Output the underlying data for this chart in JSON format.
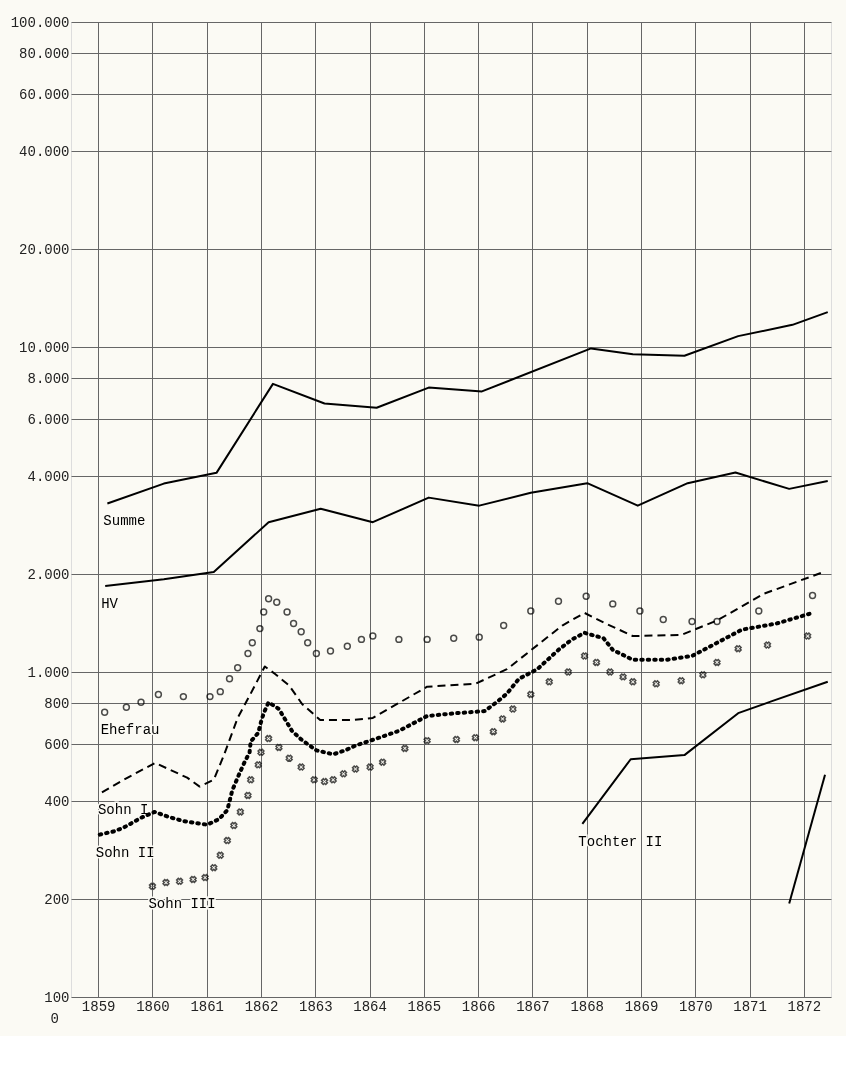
{
  "chart_data": {
    "type": "line",
    "xlim": [
      1859,
      1873
    ],
    "xticks": [
      {
        "value": 1859.5,
        "label": "1859"
      },
      {
        "value": 1860.5,
        "label": "1860"
      },
      {
        "value": 1861.5,
        "label": "1861"
      },
      {
        "value": 1862.5,
        "label": "1862"
      },
      {
        "value": 1863.5,
        "label": "1863"
      },
      {
        "value": 1864.5,
        "label": "1864"
      },
      {
        "value": 1865.5,
        "label": "1865"
      },
      {
        "value": 1866.5,
        "label": "1866"
      },
      {
        "value": 1867.5,
        "label": "1867"
      },
      {
        "value": 1868.5,
        "label": "1868"
      },
      {
        "value": 1869.5,
        "label": "1869"
      },
      {
        "value": 1870.5,
        "label": "1870"
      },
      {
        "value": 1871.5,
        "label": "1871"
      },
      {
        "value": 1872.5,
        "label": "1872"
      }
    ],
    "ylim": [
      100,
      100000
    ],
    "log": true,
    "yticks": [
      100,
      200,
      400,
      600,
      800,
      {
        "value": 1000,
        "label": "1.000"
      },
      {
        "value": 2000,
        "label": "2.000"
      },
      {
        "value": 4000,
        "label": "4.000"
      },
      {
        "value": 6000,
        "label": "6.000"
      },
      {
        "value": 8000,
        "label": "8.000"
      },
      {
        "value": 10000,
        "label": "10.000"
      },
      {
        "value": 20000,
        "label": "20.000"
      },
      {
        "value": 40000,
        "label": "40.000"
      },
      {
        "value": 60000,
        "label": "60.000"
      },
      {
        "value": 80000,
        "label": "80.000"
      },
      {
        "value": 100000,
        "label": "100.000"
      }
    ],
    "grid": true,
    "legend": false,
    "annotations": [
      "0"
    ],
    "series": [
      {
        "name": "Summe",
        "line_style": "solid",
        "color": "#000000",
        "x": [
          1859.67,
          1860.71,
          1861.68,
          1862.72,
          1863.67,
          1864.63,
          1865.59,
          1866.57,
          1868.58,
          1869.35,
          1870.3,
          1871.29,
          1872.29,
          1872.94
        ],
        "values": [
          3300,
          3800,
          4100,
          7700,
          6700,
          6500,
          7500,
          7300,
          9900,
          9500,
          9400,
          10800,
          11700,
          12800
        ]
      },
      {
        "name": "HV",
        "line_style": "solid",
        "color": "#000000",
        "x": [
          1859.63,
          1860.71,
          1861.63,
          1862.64,
          1863.6,
          1864.56,
          1865.59,
          1866.52,
          1867.47,
          1868.51,
          1869.44,
          1870.36,
          1871.24,
          1872.23,
          1872.94
        ],
        "values": [
          1840,
          1930,
          2030,
          2890,
          3180,
          2890,
          3440,
          3250,
          3560,
          3810,
          3250,
          3810,
          4110,
          3660,
          3870
        ]
      },
      {
        "name": "Ehefrau",
        "type": "scatter",
        "marker": "circle",
        "color": "#000000",
        "x": [
          1859.62,
          1860.02,
          1860.29,
          1860.61,
          1861.07,
          1861.56,
          1861.75,
          1861.92,
          1862.07,
          1862.26,
          1862.34,
          1862.48,
          1862.55,
          1862.64,
          1862.79,
          1862.98,
          1863.1,
          1863.24,
          1863.36,
          1863.52,
          1863.78,
          1864.09,
          1864.35,
          1864.56,
          1865.04,
          1865.56,
          1866.05,
          1866.52,
          1866.97,
          1867.47,
          1867.98,
          1868.49,
          1868.98,
          1869.48,
          1869.91,
          1870.44,
          1870.9,
          1871.67,
          1872.66
        ],
        "values": [
          752,
          779,
          807,
          853,
          840,
          840,
          870,
          953,
          1030,
          1140,
          1230,
          1360,
          1530,
          1680,
          1640,
          1530,
          1410,
          1330,
          1230,
          1140,
          1160,
          1200,
          1260,
          1290,
          1260,
          1260,
          1270,
          1280,
          1390,
          1540,
          1650,
          1710,
          1620,
          1540,
          1450,
          1430,
          1430,
          1540,
          1720
        ]
      },
      {
        "name": "Sohn I",
        "line_style": "dashed",
        "color": "#000000",
        "x": [
          1859.57,
          1859.97,
          1860.55,
          1861.14,
          1861.37,
          1861.63,
          1861.81,
          1862.07,
          1862.31,
          1862.57,
          1862.76,
          1863.02,
          1863.26,
          1863.59,
          1864.21,
          1864.56,
          1865.56,
          1866.45,
          1867.03,
          1868.05,
          1868.46,
          1868.85,
          1869.35,
          1870.24,
          1870.9,
          1871.76,
          1872.86
        ],
        "values": [
          426,
          466,
          525,
          473,
          444,
          466,
          551,
          722,
          858,
          1040,
          986,
          908,
          796,
          712,
          712,
          722,
          901,
          920,
          1020,
          1390,
          1520,
          1410,
          1290,
          1300,
          1440,
          1740,
          2030
        ]
      },
      {
        "name": "Sohn II",
        "line_style": "dotted",
        "color": "#000000",
        "x": [
          1859.53,
          1859.78,
          1859.97,
          1860.29,
          1860.54,
          1860.8,
          1861.07,
          1861.25,
          1861.51,
          1861.73,
          1861.88,
          1861.97,
          1862.1,
          1862.19,
          1862.29,
          1862.31,
          1862.45,
          1862.5,
          1862.55,
          1862.64,
          1862.83,
          1862.95,
          1863.07,
          1863.24,
          1863.52,
          1863.83,
          1864.05,
          1864.24,
          1864.63,
          1865.04,
          1865.56,
          1866.1,
          1866.62,
          1866.86,
          1867.03,
          1867.25,
          1867.59,
          1867.98,
          1868.23,
          1868.46,
          1868.81,
          1868.98,
          1869.35,
          1869.96,
          1870.44,
          1870.9,
          1871.36,
          1872.0,
          1872.66
        ],
        "values": [
          316,
          323,
          332,
          356,
          371,
          358,
          348,
          344,
          339,
          353,
          376,
          432,
          486,
          525,
          566,
          611,
          650,
          702,
          747,
          807,
          769,
          712,
          659,
          620,
          574,
          558,
          574,
          594,
          624,
          659,
          732,
          747,
          758,
          812,
          858,
          953,
          1020,
          1170,
          1260,
          1320,
          1270,
          1170,
          1090,
          1090,
          1120,
          1230,
          1350,
          1410,
          1520
        ]
      },
      {
        "name": "Sohn III",
        "type": "scatter",
        "marker": "cross",
        "color": "#000000",
        "x": [
          1860.5,
          1860.75,
          1861.0,
          1861.25,
          1861.47,
          1861.63,
          1861.75,
          1861.88,
          1862.0,
          1862.12,
          1862.26,
          1862.31,
          1862.45,
          1862.5,
          1862.64,
          1862.83,
          1863.02,
          1863.24,
          1863.48,
          1863.67,
          1863.83,
          1864.02,
          1864.24,
          1864.51,
          1864.74,
          1865.15,
          1865.56,
          1866.1,
          1866.45,
          1866.78,
          1866.95,
          1867.14,
          1867.47,
          1867.81,
          1868.16,
          1868.46,
          1868.68,
          1868.93,
          1869.17,
          1869.35,
          1869.78,
          1870.24,
          1870.64,
          1870.9,
          1871.29,
          1871.83,
          1872.57
        ],
        "values": [
          219,
          225,
          227,
          230,
          233,
          250,
          273,
          303,
          337,
          371,
          417,
          466,
          518,
          566,
          624,
          586,
          543,
          510,
          466,
          460,
          466,
          486,
          503,
          510,
          528,
          582,
          615,
          620,
          628,
          655,
          717,
          769,
          853,
          933,
          1000,
          1120,
          1070,
          1000,
          966,
          933,
          920,
          940,
          980,
          1070,
          1180,
          1210,
          1290
        ]
      },
      {
        "name": "Tochter II",
        "line_style": "solid",
        "color": "#000000",
        "x": [
          1868.42,
          1869.31,
          1870.3,
          1871.29,
          1871.9,
          1872.94
        ],
        "values": [
          341,
          539,
          555,
          747,
          812,
          933
        ]
      },
      {
        "line_style": "solid",
        "color": "#000000",
        "x": [
          1872.23,
          1872.89
        ],
        "values": [
          194,
          483
        ]
      }
    ]
  }
}
